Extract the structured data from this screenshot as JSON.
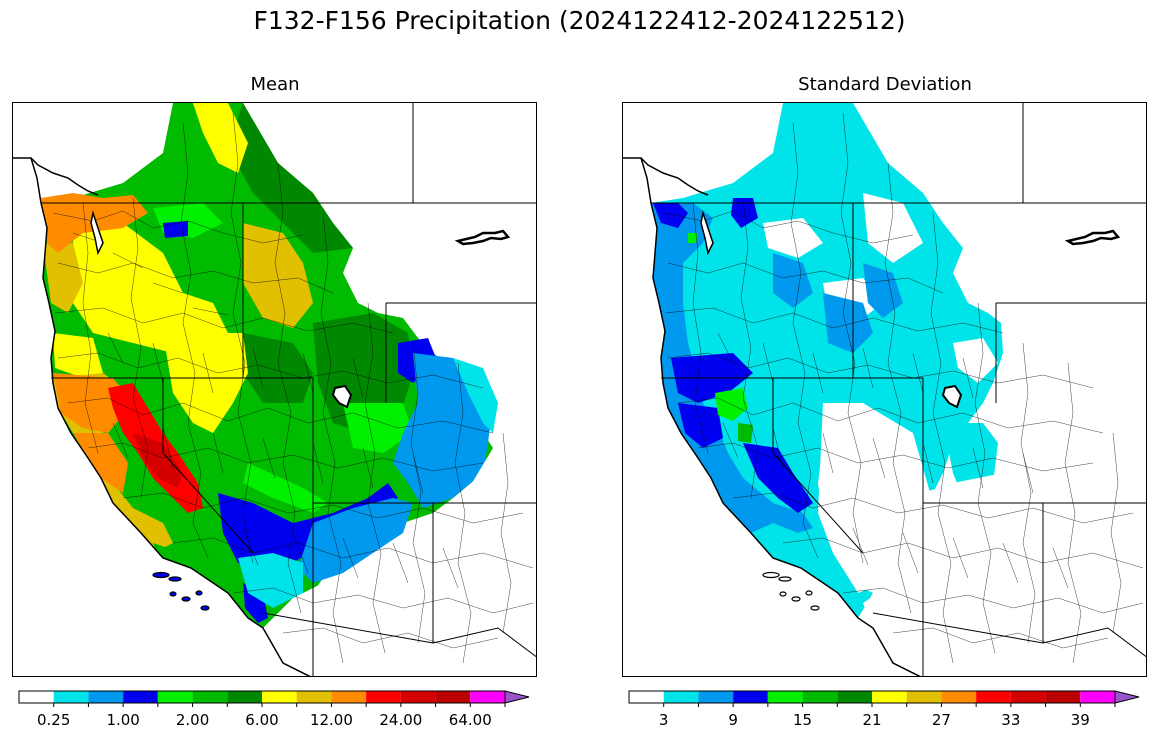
{
  "figure": {
    "title": "F132-F156 Precipitation (2024122412-2024122512)"
  },
  "panels": [
    {
      "title": "Mean",
      "colorbar": {
        "colors": [
          "#ffffff",
          "#00e3e8",
          "#0099ee",
          "#0000f0",
          "#00f000",
          "#00bb00",
          "#008800",
          "#ffff00",
          "#e0c000",
          "#ff8c00",
          "#ff0000",
          "#d40000",
          "#bb0000",
          "#ff00ff",
          "#9955cc"
        ],
        "tick_labels": [
          "0.25",
          "1.00",
          "2.00",
          "6.00",
          "12.00",
          "24.00",
          "64.00"
        ],
        "extend": "max"
      }
    },
    {
      "title": "Standard Deviation",
      "colorbar": {
        "colors": [
          "#ffffff",
          "#00e3e8",
          "#0099ee",
          "#0000f0",
          "#00f000",
          "#00bb00",
          "#008800",
          "#ffff00",
          "#e0c000",
          "#ff8c00",
          "#ff0000",
          "#d40000",
          "#bb0000",
          "#ff00ff",
          "#9955cc"
        ],
        "tick_labels": [
          "3",
          "9",
          "15",
          "21",
          "27",
          "33",
          "39"
        ],
        "extend": "max"
      }
    }
  ],
  "map": {
    "region": "Western United States",
    "layers": [
      "basin boundaries",
      "state borders",
      "coastlines",
      "lakes"
    ],
    "mean_pattern": "heaviest precipitation (red) over northern California Sierra/Shasta, orange-yellow along Pacific NW coast, greens over interior Northwest and Great Basin, blues/cyan over Utah-Colorado and southern Nevada, no precipitation over Arizona/New Mexico",
    "stddev_pattern": "highest spread (blue) along northern California and Oregon coasts, cyan over Washington, Idaho and Montana, white over Great Basin and Southwest"
  }
}
